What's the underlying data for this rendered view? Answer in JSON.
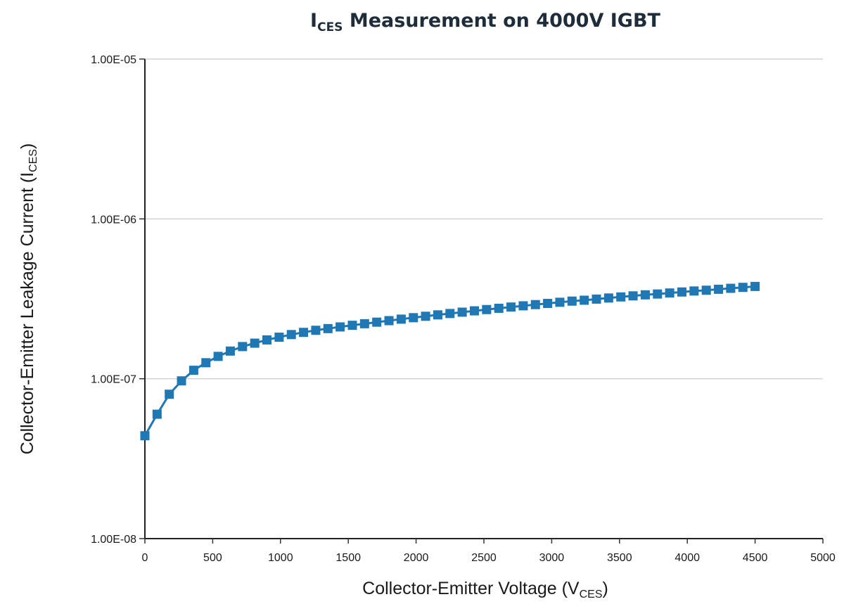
{
  "chart_data": {
    "type": "scatter",
    "title": {
      "main": "I",
      "sub": "CES",
      "rest": " Measurement on 4000V IGBT"
    },
    "xlabel": {
      "main": "Collector-Emitter Voltage (V",
      "sub": "CES",
      "end": ")"
    },
    "ylabel": {
      "main": "Collector-Emitter Leakage Current (I",
      "sub": "CES",
      "end": ")"
    },
    "xlim": [
      0,
      5000
    ],
    "ylim": [
      1e-08,
      1e-05
    ],
    "y_scale": "log",
    "grid": "horizontal",
    "x_ticks": [
      "0",
      "500",
      "1000",
      "1500",
      "2000",
      "2500",
      "3000",
      "3500",
      "4000",
      "4500",
      "5000"
    ],
    "y_ticks": [
      "1.00E-08",
      "1.00E-07",
      "1.00E-06",
      "1.00E-05"
    ],
    "series_color": "#1f77b4",
    "series": [
      {
        "x": [
          0,
          90,
          180,
          270,
          360,
          450,
          540,
          630,
          720,
          810,
          900,
          990,
          1080,
          1170,
          1260,
          1350,
          1440,
          1530,
          1620,
          1710,
          1800,
          1890,
          1980,
          2070,
          2160,
          2250,
          2340,
          2430,
          2520,
          2610,
          2700,
          2790,
          2880,
          2970,
          3060,
          3150,
          3240,
          3330,
          3420,
          3510,
          3600,
          3690,
          3780,
          3870,
          3960,
          4050,
          4140,
          4230,
          4320,
          4410,
          4500
        ],
        "y": [
          4.4e-08,
          6e-08,
          8e-08,
          9.7e-08,
          1.13e-07,
          1.26e-07,
          1.38e-07,
          1.49e-07,
          1.59e-07,
          1.67e-07,
          1.75e-07,
          1.82e-07,
          1.89e-07,
          1.95e-07,
          2.01e-07,
          2.06e-07,
          2.11e-07,
          2.16e-07,
          2.21e-07,
          2.26e-07,
          2.31e-07,
          2.36e-07,
          2.41e-07,
          2.46e-07,
          2.51e-07,
          2.56e-07,
          2.61e-07,
          2.66e-07,
          2.71e-07,
          2.76e-07,
          2.81e-07,
          2.86e-07,
          2.91e-07,
          2.96e-07,
          3.01e-07,
          3.06e-07,
          3.1e-07,
          3.15e-07,
          3.2e-07,
          3.25e-07,
          3.3e-07,
          3.35e-07,
          3.39e-07,
          3.44e-07,
          3.49e-07,
          3.54e-07,
          3.58e-07,
          3.63e-07,
          3.68e-07,
          3.73e-07,
          3.78e-07
        ]
      }
    ]
  }
}
